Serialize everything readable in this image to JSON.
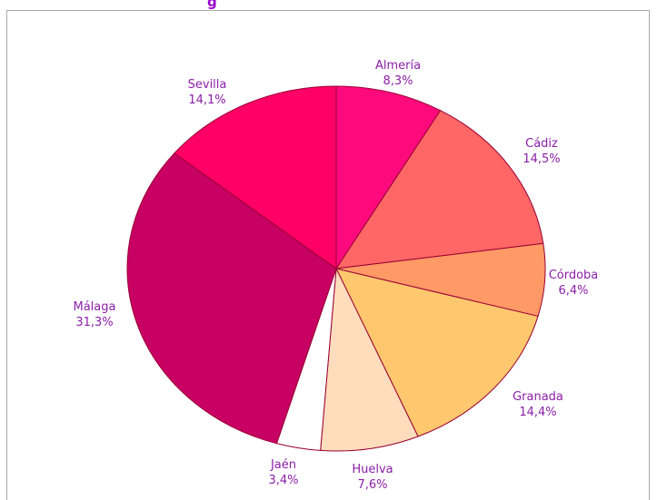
{
  "title_fragment": "g",
  "chart_data": {
    "type": "pie",
    "title": "",
    "slices": [
      {
        "name": "Almería",
        "value": 8.3,
        "label": "8,3%",
        "color": "#ff0a7d"
      },
      {
        "name": "Cádiz",
        "value": 14.5,
        "label": "14,5%",
        "color": "#ff6666"
      },
      {
        "name": "Córdoba",
        "value": 6.4,
        "label": "6,4%",
        "color": "#ff9966"
      },
      {
        "name": "Granada",
        "value": 14.4,
        "label": "14,4%",
        "color": "#ffc86e"
      },
      {
        "name": "Huelva",
        "value": 7.6,
        "label": "7,6%",
        "color": "#ffdcbc"
      },
      {
        "name": "Jaén",
        "value": 3.4,
        "label": "3,4%",
        "color": "#ffffff"
      },
      {
        "name": "Málaga",
        "value": 31.3,
        "label": "31,3%",
        "color": "#c80064"
      },
      {
        "name": "Sevilla",
        "value": 14.1,
        "label": "14,1%",
        "color": "#ff0066"
      }
    ],
    "start_angle_deg": 0,
    "direction": "clockwise",
    "stroke_color": "#990033",
    "label_color": "#8b1fa8"
  }
}
